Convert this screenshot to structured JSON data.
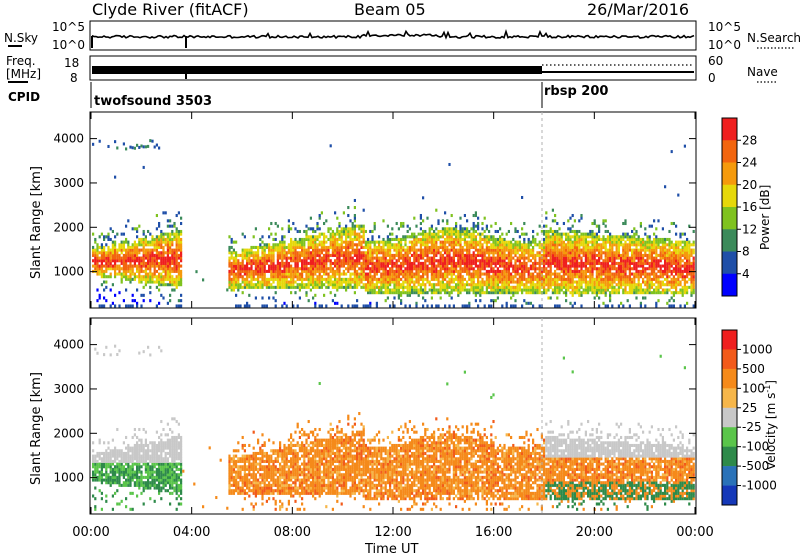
{
  "header": {
    "station": "Clyde River (fitACF)",
    "beam": "Beam 05",
    "date": "26/Mar/2016"
  },
  "top_panel": {
    "left_label": "N.Sky",
    "left_ticks": [
      "10^5",
      "10^0"
    ],
    "right_ticks": [
      "10^5",
      "10^0"
    ],
    "right_label": "N.Search"
  },
  "freq_panel": {
    "left_label_1": "Freq.",
    "left_label_2": "[MHz]",
    "left_ticks": [
      "18",
      "8"
    ],
    "right_ticks": [
      "60",
      "0"
    ],
    "right_label": "Nave"
  },
  "cpid_panel": {
    "label": "CPID",
    "modes": [
      {
        "name": "twofsound 3503",
        "start_hour": 0
      },
      {
        "name": "rbsp 200",
        "start_hour": 18
      }
    ]
  },
  "chart_data": [
    {
      "type": "heatmap",
      "name": "power",
      "ylabel": "Slant Range [km]",
      "xlabel": "Time UT",
      "x_ticks": [
        "00:00",
        "04:00",
        "08:00",
        "12:00",
        "16:00",
        "20:00",
        "00:00"
      ],
      "y_ticks": [
        "1000",
        "2000",
        "3000",
        "4000"
      ],
      "xlim": [
        0,
        24
      ],
      "ylim": [
        180,
        4600
      ],
      "colorbar": {
        "label": "Power [dB]",
        "ticks": [
          "4",
          "8",
          "12",
          "16",
          "20",
          "24",
          "28"
        ],
        "range": [
          0,
          32
        ],
        "colors": [
          "#0000ff",
          "#1f4fa8",
          "#3b8a5a",
          "#7fc21f",
          "#e6d80a",
          "#f59a0c",
          "#f2650e",
          "#ef1f1f"
        ]
      }
    },
    {
      "type": "heatmap",
      "name": "velocity",
      "ylabel": "Slant Range [km]",
      "xlabel": "Time UT",
      "x_ticks": [
        "00:00",
        "04:00",
        "08:00",
        "12:00",
        "16:00",
        "20:00",
        "00:00"
      ],
      "y_ticks": [
        "1000",
        "2000",
        "3000",
        "4000"
      ],
      "xlim": [
        0,
        24
      ],
      "ylim": [
        180,
        4600
      ],
      "colorbar": {
        "label": "Velocity [m s",
        "label_sup": "-1",
        "ticks": [
          "1000",
          "500",
          "100",
          "25",
          "-25",
          "-100",
          "-500",
          "-1000"
        ],
        "colors": [
          "#1538b8",
          "#2a72b8",
          "#2e8a4a",
          "#5ac54a",
          "#c8c8c8",
          "#f6b64a",
          "#f58a1a",
          "#f25a1a",
          "#ef1f1f"
        ]
      }
    }
  ],
  "x_axis": {
    "label": "Time UT",
    "ticks": [
      "00:00",
      "04:00",
      "08:00",
      "12:00",
      "16:00",
      "20:00",
      "00:00"
    ]
  }
}
